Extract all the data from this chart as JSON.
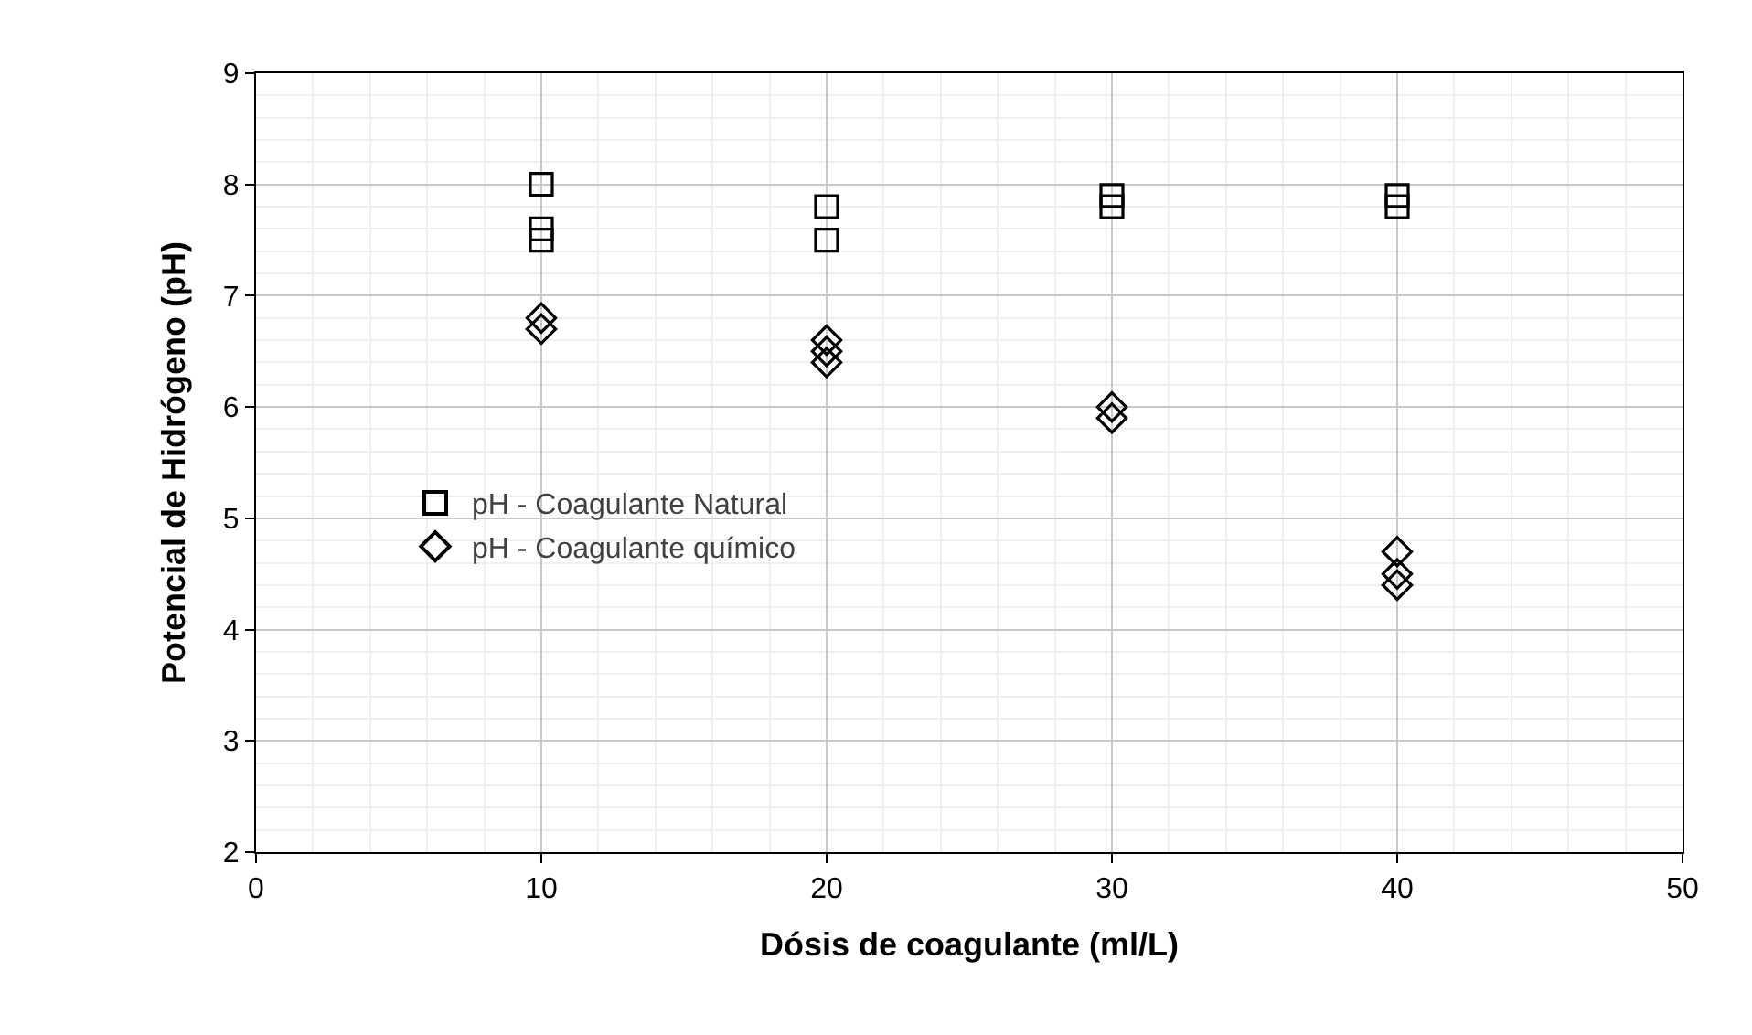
{
  "chart_data": {
    "type": "scatter",
    "xlabel": "Dósis de coagulante (ml/L)",
    "ylabel": "Potencial de Hidrógeno (pH)",
    "xlim": [
      0,
      50
    ],
    "xticks": [
      0,
      10,
      20,
      30,
      40,
      50
    ],
    "ylim": [
      2,
      9
    ],
    "yticks": [
      2,
      3,
      4,
      5,
      6,
      7,
      8,
      9
    ],
    "grid": true,
    "legend": "left",
    "series": [
      {
        "name": "pH - Coagulante Natural",
        "color": "#000000",
        "marker": "square",
        "x": [
          10,
          10,
          10,
          20,
          20,
          30,
          30,
          40,
          40
        ],
        "values": [
          8.0,
          7.6,
          7.5,
          7.8,
          7.5,
          7.9,
          7.8,
          7.9,
          7.8
        ]
      },
      {
        "name": "pH - Coagulante químico",
        "color": "#000000",
        "marker": "diamond",
        "x": [
          10,
          10,
          20,
          20,
          20,
          30,
          30,
          40,
          40,
          40
        ],
        "values": [
          6.8,
          6.7,
          6.6,
          6.5,
          6.4,
          6.0,
          5.9,
          4.7,
          4.5,
          4.4
        ]
      }
    ]
  }
}
